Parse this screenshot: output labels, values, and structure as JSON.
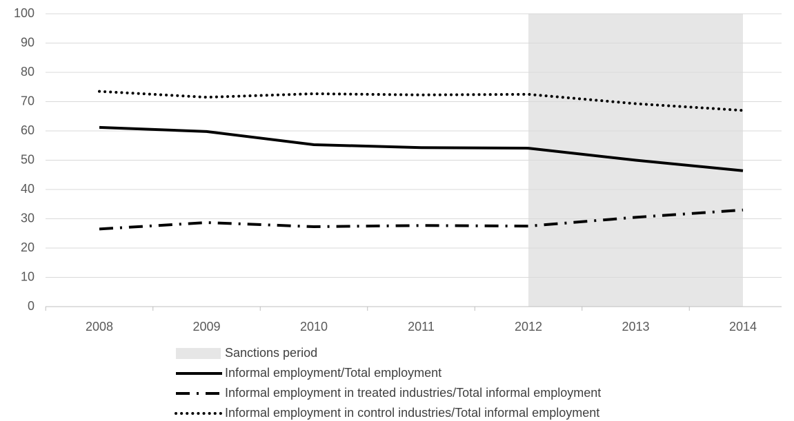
{
  "chart_data": {
    "type": "line",
    "categories": [
      "2008",
      "2009",
      "2010",
      "2011",
      "2012",
      "2013",
      "2014"
    ],
    "ylim": [
      0,
      100
    ],
    "yticks": [
      0,
      10,
      20,
      30,
      40,
      50,
      60,
      70,
      80,
      90,
      100
    ],
    "grid": true,
    "shaded_region": {
      "name": "Sanctions period",
      "color": "#e6e6e6",
      "from": "2012",
      "to": "2014"
    },
    "series": [
      {
        "name": "Informal employment/Total employment",
        "color": "#000000",
        "style": "solid",
        "values": [
          61.2,
          59.8,
          55.3,
          54.3,
          54.1,
          50.0,
          46.4
        ]
      },
      {
        "name": "Informal employment in treated industries/Total informal employment",
        "color": "#000000",
        "style": "dashdot",
        "values": [
          26.5,
          28.7,
          27.3,
          27.7,
          27.5,
          30.5,
          33.0
        ]
      },
      {
        "name": "Informal employment in control industries/Total informal employment",
        "color": "#000000",
        "style": "dotted",
        "values": [
          73.5,
          71.5,
          72.7,
          72.3,
          72.5,
          69.3,
          67.0
        ]
      }
    ],
    "legend": "bottom"
  }
}
